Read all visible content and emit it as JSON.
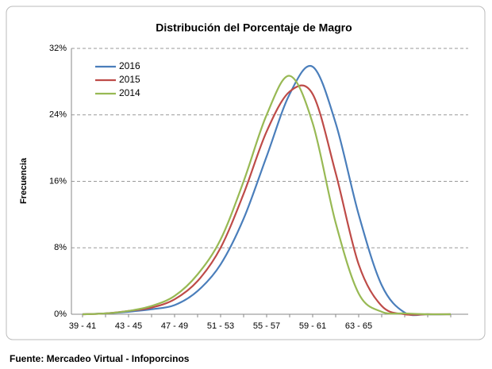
{
  "chart_data": {
    "type": "line",
    "title": "Distribución del Porcentaje de Magro",
    "y_label": "Frecuencia",
    "source": "Fuente: Mercadeo Virtual - Infoporcinos",
    "categories": [
      "39 - 41",
      null,
      "43 - 45",
      null,
      "47 - 49",
      null,
      "51 - 53",
      null,
      "55 - 57",
      null,
      "59 - 61",
      null,
      "63 - 65",
      null,
      null,
      null,
      null
    ],
    "series": [
      {
        "name": "2016",
        "color": "#4a7ebb",
        "values": [
          0,
          0.1,
          0.3,
          0.6,
          1.1,
          2.8,
          6,
          11.5,
          19,
          26.5,
          29.8,
          23,
          12,
          3.5,
          0.2,
          0,
          0
        ]
      },
      {
        "name": "2015",
        "color": "#be4b48",
        "values": [
          0,
          0.1,
          0.4,
          0.8,
          1.8,
          4,
          8,
          14.5,
          22,
          26.8,
          26.5,
          17,
          6,
          1,
          0,
          0,
          0
        ]
      },
      {
        "name": "2014",
        "color": "#98b954",
        "values": [
          0,
          0.1,
          0.4,
          1,
          2.2,
          4.8,
          9,
          16,
          24,
          28.7,
          23,
          11,
          2.5,
          0.3,
          0.1,
          0,
          0
        ]
      }
    ],
    "ylim": [
      0,
      32
    ],
    "yticks": [
      {
        "value": 0,
        "label": "0%"
      },
      {
        "value": 8,
        "label": "8%"
      },
      {
        "value": 16,
        "label": "16%"
      },
      {
        "value": 24,
        "label": "24%"
      },
      {
        "value": 32,
        "label": "32%"
      }
    ],
    "grid": true,
    "legend": "top-left"
  }
}
